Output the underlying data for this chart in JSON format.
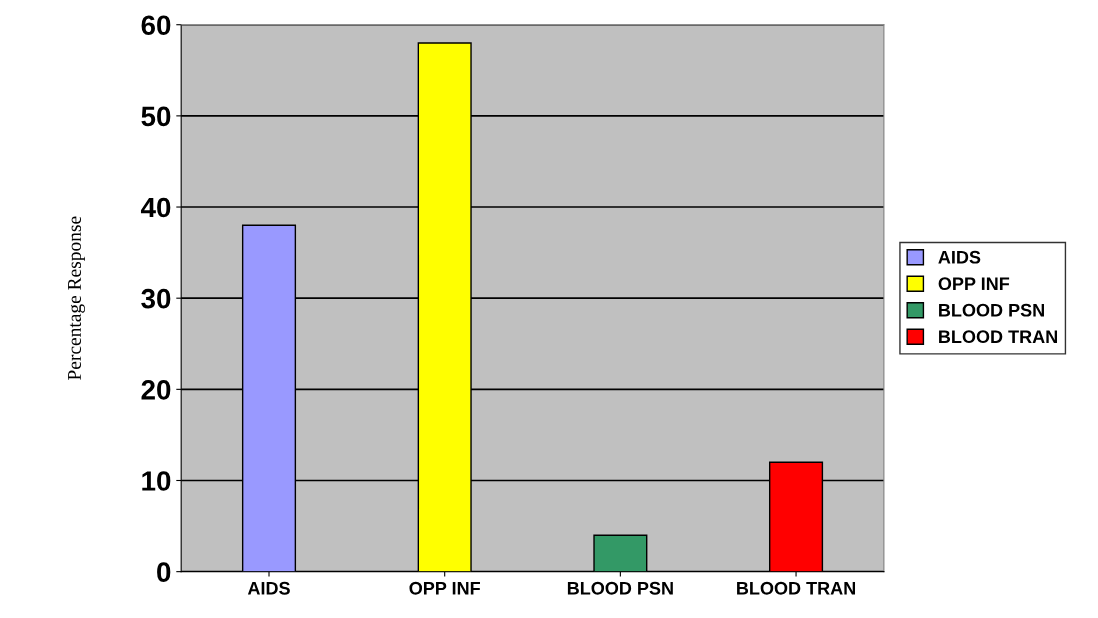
{
  "chart_data": {
    "type": "bar",
    "ylabel": "Percentage Response",
    "categories": [
      "AIDS",
      "OPP INF",
      "BLOOD PSN",
      "BLOOD TRAN"
    ],
    "series": [
      {
        "name": "AIDS",
        "color": "#9999ff",
        "values": [
          38,
          null,
          null,
          null
        ]
      },
      {
        "name": "OPP INF",
        "color": "#ffff00",
        "values": [
          null,
          58,
          null,
          null
        ]
      },
      {
        "name": "BLOOD PSN",
        "color": "#339966",
        "values": [
          null,
          null,
          4,
          null
        ]
      },
      {
        "name": "BLOOD TRAN",
        "color": "#ff0000",
        "values": [
          null,
          null,
          null,
          12
        ]
      }
    ],
    "ylim": [
      0,
      60
    ],
    "yticks": [
      0,
      10,
      20,
      30,
      40,
      50,
      60
    ],
    "grid": "y",
    "legend": "right"
  }
}
